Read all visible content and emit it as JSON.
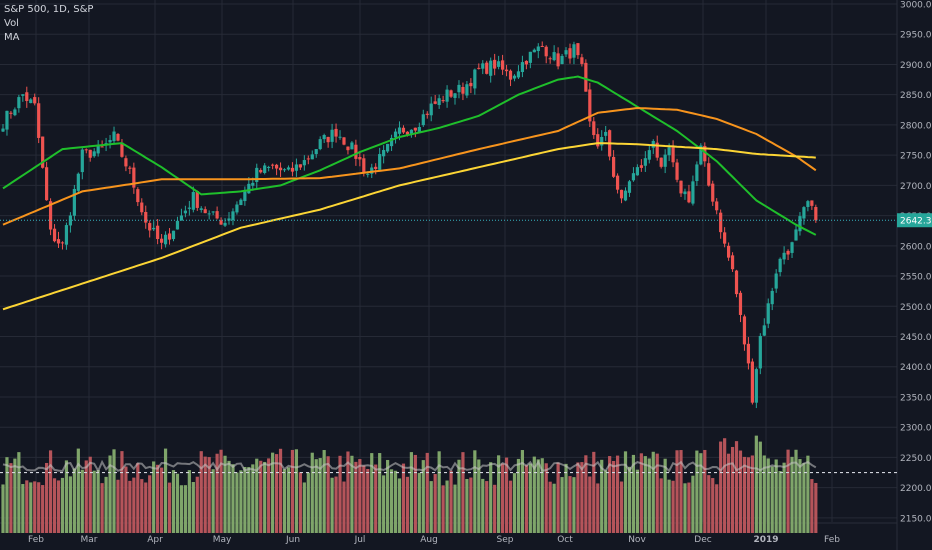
{
  "legend": {
    "title": "S&P 500, 1D, S&P",
    "vol": "Vol",
    "ma": "MA"
  },
  "colors": {
    "background": "#131722",
    "grid": "#262a36",
    "axis_text": "#b2b5be",
    "up": "#26a69a",
    "down": "#ef5350",
    "vol_up": "#7fa56a",
    "vol_down": "#b5545a",
    "ma_green": "#1fbf2b",
    "ma_orange": "#f7941d",
    "ma_yellow": "#fcd535",
    "price_line": "#36b3bf",
    "vol_ma": "#c7c7c7"
  },
  "chart_data": {
    "type": "candlestick",
    "price_axis_ticks": [
      3000,
      2950,
      2900,
      2850,
      2800,
      2750,
      2700,
      2650,
      2600,
      2550,
      2500,
      2450,
      2400,
      2350,
      2300,
      2250,
      2200,
      2150
    ],
    "price_axis_labels": [
      "3000.00",
      "2950.00",
      "2900.00",
      "2850.00",
      "2800.00",
      "2750.00",
      "2700.00",
      "2650.00",
      "2600.00",
      "2550.00",
      "2500.00",
      "2450.00",
      "2400.00",
      "2350.00",
      "2300.00",
      "2250.00",
      "2200.00",
      "2150.00"
    ],
    "ylim": [
      2125,
      3000
    ],
    "time_labels": [
      "Feb",
      "Mar",
      "Apr",
      "May",
      "Jun",
      "Jul",
      "Aug",
      "Sep",
      "Oct",
      "Nov",
      "Dec",
      "2019",
      "Feb"
    ],
    "last_price": 2642.33,
    "last_price_label": "2642.33",
    "volume_ma_level": 2225,
    "close_anchors": [
      [
        0,
        2805
      ],
      [
        5,
        2850
      ],
      [
        8,
        2830
      ],
      [
        12,
        2620
      ],
      [
        15,
        2600
      ],
      [
        20,
        2750
      ],
      [
        25,
        2760
      ],
      [
        28,
        2780
      ],
      [
        32,
        2720
      ],
      [
        36,
        2640
      ],
      [
        40,
        2600
      ],
      [
        44,
        2640
      ],
      [
        48,
        2680
      ],
      [
        52,
        2650
      ],
      [
        56,
        2640
      ],
      [
        60,
        2680
      ],
      [
        64,
        2720
      ],
      [
        68,
        2730
      ],
      [
        72,
        2720
      ],
      [
        76,
        2740
      ],
      [
        80,
        2770
      ],
      [
        84,
        2790
      ],
      [
        88,
        2760
      ],
      [
        92,
        2720
      ],
      [
        96,
        2750
      ],
      [
        100,
        2790
      ],
      [
        104,
        2800
      ],
      [
        108,
        2830
      ],
      [
        112,
        2850
      ],
      [
        116,
        2860
      ],
      [
        120,
        2890
      ],
      [
        124,
        2900
      ],
      [
        128,
        2880
      ],
      [
        132,
        2910
      ],
      [
        136,
        2930
      ],
      [
        140,
        2905
      ],
      [
        144,
        2925
      ],
      [
        146,
        2890
      ],
      [
        148,
        2800
      ],
      [
        150,
        2770
      ],
      [
        152,
        2780
      ],
      [
        154,
        2720
      ],
      [
        156,
        2670
      ],
      [
        158,
        2710
      ],
      [
        162,
        2740
      ],
      [
        164,
        2780
      ],
      [
        166,
        2720
      ],
      [
        168,
        2760
      ],
      [
        170,
        2700
      ],
      [
        173,
        2680
      ],
      [
        176,
        2760
      ],
      [
        178,
        2700
      ],
      [
        180,
        2660
      ],
      [
        182,
        2600
      ],
      [
        184,
        2560
      ],
      [
        186,
        2480
      ],
      [
        188,
        2400
      ],
      [
        189,
        2351
      ],
      [
        191,
        2450
      ],
      [
        193,
        2500
      ],
      [
        195,
        2560
      ],
      [
        197,
        2590
      ],
      [
        199,
        2600
      ],
      [
        201,
        2640
      ],
      [
        203,
        2670
      ],
      [
        205,
        2642
      ]
    ],
    "ma_series": [
      {
        "color": "green",
        "values": [
          [
            0,
            2695
          ],
          [
            15,
            2760
          ],
          [
            30,
            2770
          ],
          [
            40,
            2730
          ],
          [
            50,
            2685
          ],
          [
            60,
            2690
          ],
          [
            70,
            2700
          ],
          [
            80,
            2725
          ],
          [
            90,
            2755
          ],
          [
            100,
            2780
          ],
          [
            110,
            2795
          ],
          [
            120,
            2815
          ],
          [
            130,
            2850
          ],
          [
            140,
            2875
          ],
          [
            145,
            2880
          ],
          [
            150,
            2870
          ],
          [
            160,
            2830
          ],
          [
            170,
            2790
          ],
          [
            180,
            2740
          ],
          [
            190,
            2675
          ],
          [
            200,
            2635
          ],
          [
            205,
            2618
          ]
        ]
      },
      {
        "color": "orange",
        "values": [
          [
            0,
            2635
          ],
          [
            20,
            2690
          ],
          [
            40,
            2710
          ],
          [
            60,
            2710
          ],
          [
            80,
            2712
          ],
          [
            100,
            2728
          ],
          [
            120,
            2760
          ],
          [
            140,
            2790
          ],
          [
            150,
            2820
          ],
          [
            160,
            2828
          ],
          [
            170,
            2825
          ],
          [
            180,
            2810
          ],
          [
            190,
            2785
          ],
          [
            200,
            2748
          ],
          [
            205,
            2725
          ]
        ]
      },
      {
        "color": "yellow",
        "values": [
          [
            0,
            2495
          ],
          [
            40,
            2580
          ],
          [
            60,
            2630
          ],
          [
            80,
            2660
          ],
          [
            100,
            2700
          ],
          [
            120,
            2730
          ],
          [
            140,
            2760
          ],
          [
            150,
            2770
          ],
          [
            160,
            2768
          ],
          [
            180,
            2760
          ],
          [
            190,
            2752
          ],
          [
            205,
            2746
          ]
        ]
      }
    ]
  }
}
